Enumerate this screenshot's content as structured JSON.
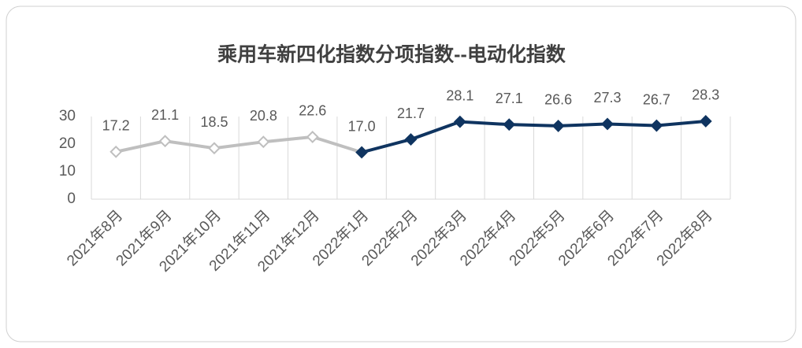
{
  "chart_data": {
    "type": "line",
    "title": "乘用车新四化指数分项指数--电动化指数",
    "categories": [
      "2021年8月",
      "2021年9月",
      "2021年10月",
      "2021年11月",
      "2021年12月",
      "2022年1月",
      "2022年2月",
      "2022年3月",
      "2022年4月",
      "2022年5月",
      "2022年6月",
      "2022年7月",
      "2022年8月"
    ],
    "series": [
      {
        "color": "#bfbfbf",
        "marker_fill": "#ffffff",
        "values": [
          17.2,
          21.1,
          18.5,
          20.8,
          22.6,
          17.0,
          null,
          null,
          null,
          null,
          null,
          null,
          null
        ],
        "value_labels": [
          "17.2",
          "21.1",
          "18.5",
          "20.8",
          "22.6",
          "17.0",
          null,
          null,
          null,
          null,
          null,
          null,
          null
        ]
      },
      {
        "color": "#0f3460",
        "marker_fill": "#0f3460",
        "values": [
          null,
          null,
          null,
          null,
          null,
          17.0,
          21.7,
          28.1,
          27.1,
          26.6,
          27.3,
          26.7,
          28.3
        ],
        "value_labels": [
          null,
          null,
          null,
          null,
          null,
          null,
          "21.7",
          "28.1",
          "27.1",
          "26.6",
          "27.3",
          "26.7",
          "28.3"
        ]
      }
    ],
    "ylim": [
      0,
      30
    ],
    "yticks": [
      0,
      10,
      20,
      30
    ],
    "grid": "x"
  }
}
